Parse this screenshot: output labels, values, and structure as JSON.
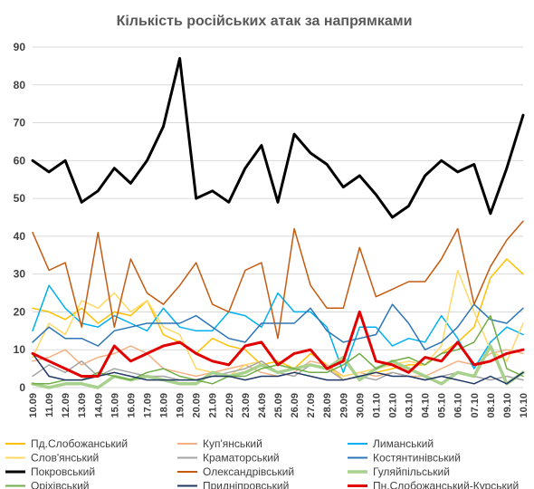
{
  "chart_data": {
    "type": "line",
    "title": "Кількість російських атак за напрямками",
    "xlabel": "",
    "ylabel": "",
    "ylim": [
      0,
      90
    ],
    "yticks": [
      0,
      10,
      20,
      30,
      40,
      50,
      60,
      70,
      80,
      90
    ],
    "grid": true,
    "legend_position": "bottom",
    "x": [
      "10.09",
      "11.09",
      "12.09",
      "13.09",
      "14.09",
      "15.09",
      "16.09",
      "17.09",
      "18.09",
      "19.09",
      "20.09",
      "21.09",
      "22.09",
      "23.09",
      "24.09",
      "25.09",
      "26.09",
      "27.09",
      "28.09",
      "29.09",
      "30.09",
      "01.10",
      "02.10",
      "03.10",
      "04.10",
      "05.10",
      "06.10",
      "07.10",
      "08.10",
      "09.10",
      "10.10"
    ],
    "series": [
      {
        "name": "Пд.Слобожанський",
        "color": "#ffc000",
        "width": 1.5,
        "values": [
          21,
          20,
          18,
          21,
          17,
          20,
          19,
          23,
          14,
          12,
          9,
          13,
          11,
          10,
          6,
          7,
          5,
          9,
          6,
          2,
          3,
          4,
          5,
          6,
          6,
          9,
          12,
          16,
          29,
          34,
          30
        ]
      },
      {
        "name": "Куп'янський",
        "color": "#f4b183",
        "width": 1.5,
        "values": [
          7,
          8,
          10,
          6,
          8,
          9,
          11,
          9,
          5,
          4,
          3,
          4,
          5,
          6,
          4,
          3,
          4,
          7,
          6,
          3,
          4,
          3,
          4,
          3,
          3,
          5,
          7,
          6,
          9,
          10,
          9
        ]
      },
      {
        "name": "Лиманський",
        "color": "#00b0f0",
        "width": 1.5,
        "values": [
          15,
          27,
          21,
          17,
          16,
          19,
          17,
          15,
          21,
          16,
          15,
          15,
          20,
          19,
          16,
          25,
          20,
          20,
          16,
          4,
          16,
          16,
          11,
          13,
          12,
          19,
          13,
          5,
          12,
          16,
          14
        ]
      },
      {
        "name": "Слов'янський",
        "color": "#ffd966",
        "width": 1.5,
        "values": [
          8,
          17,
          14,
          23,
          21,
          25,
          20,
          23,
          16,
          14,
          5,
          4,
          3,
          6,
          7,
          4,
          5,
          6,
          5,
          3,
          4,
          5,
          6,
          7,
          6,
          11,
          31,
          20,
          10,
          7,
          17
        ]
      },
      {
        "name": "Краматорський",
        "color": "#a5a5a5",
        "width": 1.5,
        "values": [
          3,
          6,
          4,
          7,
          3,
          5,
          4,
          3,
          3,
          2,
          2,
          3,
          4,
          5,
          7,
          4,
          3,
          6,
          5,
          2,
          3,
          2,
          4,
          3,
          2,
          3,
          4,
          3,
          2,
          3,
          2
        ]
      },
      {
        "name": "Костянтинівський",
        "color": "#2e75b6",
        "width": 1.5,
        "values": [
          12,
          16,
          13,
          13,
          11,
          15,
          16,
          17,
          17,
          17,
          19,
          16,
          13,
          12,
          17,
          17,
          17,
          21,
          15,
          12,
          13,
          14,
          22,
          17,
          10,
          12,
          16,
          22,
          18,
          17,
          21
        ]
      },
      {
        "name": "Покровський",
        "color": "#000000",
        "width": 3,
        "values": [
          60,
          57,
          60,
          49,
          52,
          58,
          54,
          60,
          69,
          87,
          50,
          52,
          49,
          58,
          64,
          49,
          67,
          62,
          59,
          53,
          56,
          51,
          45,
          48,
          56,
          60,
          57,
          59,
          46,
          58,
          72
        ]
      },
      {
        "name": "Олександрівський",
        "color": "#c55a11",
        "width": 1.5,
        "values": [
          41,
          31,
          33,
          16,
          41,
          16,
          34,
          25,
          22,
          27,
          33,
          22,
          20,
          31,
          33,
          13,
          42,
          27,
          21,
          21,
          37,
          24,
          26,
          28,
          28,
          34,
          42,
          22,
          32,
          39,
          44
        ]
      },
      {
        "name": "Гуляйпільський",
        "color": "#a9d18e",
        "width": 3.5,
        "values": [
          1,
          0,
          1,
          1,
          0,
          3,
          2,
          3,
          2,
          1,
          1,
          4,
          3,
          4,
          6,
          4,
          5,
          6,
          5,
          8,
          2,
          5,
          7,
          5,
          3,
          1,
          4,
          3,
          11,
          1,
          4
        ]
      },
      {
        "name": "Оріхівський",
        "color": "#70ad47",
        "width": 1.5,
        "values": [
          1,
          1,
          2,
          2,
          4,
          3,
          2,
          4,
          5,
          3,
          2,
          1,
          3,
          3,
          5,
          6,
          5,
          4,
          4,
          6,
          9,
          5,
          7,
          8,
          6,
          9,
          10,
          12,
          19,
          5,
          3
        ]
      },
      {
        "name": "Придніпровський",
        "color": "#203864",
        "width": 1.5,
        "values": [
          9,
          3,
          2,
          2,
          3,
          4,
          3,
          2,
          2,
          2,
          2,
          3,
          3,
          2,
          3,
          3,
          4,
          3,
          2,
          2,
          3,
          4,
          3,
          3,
          2,
          3,
          2,
          1,
          3,
          1,
          4
        ]
      },
      {
        "name": "Пн.Слобожанський-Курський",
        "color": "#e00000",
        "width": 3,
        "values": [
          9,
          7,
          5,
          3,
          3,
          11,
          7,
          9,
          11,
          12,
          9,
          7,
          6,
          11,
          12,
          6,
          9,
          10,
          5,
          7,
          20,
          7,
          6,
          4,
          8,
          7,
          12,
          6,
          7,
          9,
          10
        ]
      }
    ]
  }
}
